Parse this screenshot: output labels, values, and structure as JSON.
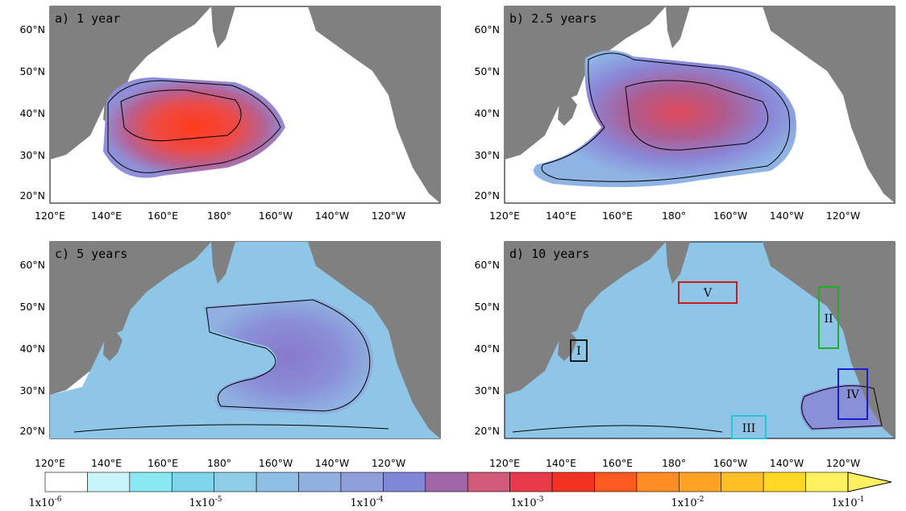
{
  "panels": [
    {
      "label": "a) 1 year"
    },
    {
      "label": "b) 2.5 years"
    },
    {
      "label": "c) 5 years"
    },
    {
      "label": "d) 10 years"
    }
  ],
  "lat_ticks": [
    "60°N",
    "50°N",
    "40°N",
    "30°N",
    "20°N"
  ],
  "lon_ticks": [
    "120°E",
    "140°E",
    "160°E",
    "180°",
    "160°W",
    "140°W",
    "120°W"
  ],
  "regions": [
    {
      "id": "I",
      "label": "I",
      "color": "#1a1a1a"
    },
    {
      "id": "II",
      "label": "II",
      "color": "#22b022"
    },
    {
      "id": "III",
      "label": "III",
      "color": "#22c8d8"
    },
    {
      "id": "IV",
      "label": "IV",
      "color": "#1a1ad0"
    },
    {
      "id": "V",
      "label": "V",
      "color": "#d01a1a"
    }
  ],
  "colorbar": {
    "colors": [
      "#ffffff",
      "#c8f4fa",
      "#8ae8f2",
      "#7fd6ec",
      "#8ecde8",
      "#8fbfe4",
      "#8fb0e0",
      "#8f9fdc",
      "#7f86d4",
      "#a066a8",
      "#d05a78",
      "#e63a4a",
      "#f23222",
      "#ff5a22",
      "#ff8c22",
      "#ffa226",
      "#ffbe26",
      "#ffd826",
      "#fff060"
    ],
    "labels": [
      {
        "base": "1x10",
        "exp": "-6"
      },
      {
        "base": "1x10",
        "exp": "-5"
      },
      {
        "base": "1x10",
        "exp": "-4"
      },
      {
        "base": "1x10",
        "exp": "-3"
      },
      {
        "base": "1x10",
        "exp": "-2"
      },
      {
        "base": "1x10",
        "exp": "-1"
      }
    ]
  },
  "colors": {
    "land": "#808080",
    "ocean_background": "#ffffff",
    "contour": "#000000"
  }
}
